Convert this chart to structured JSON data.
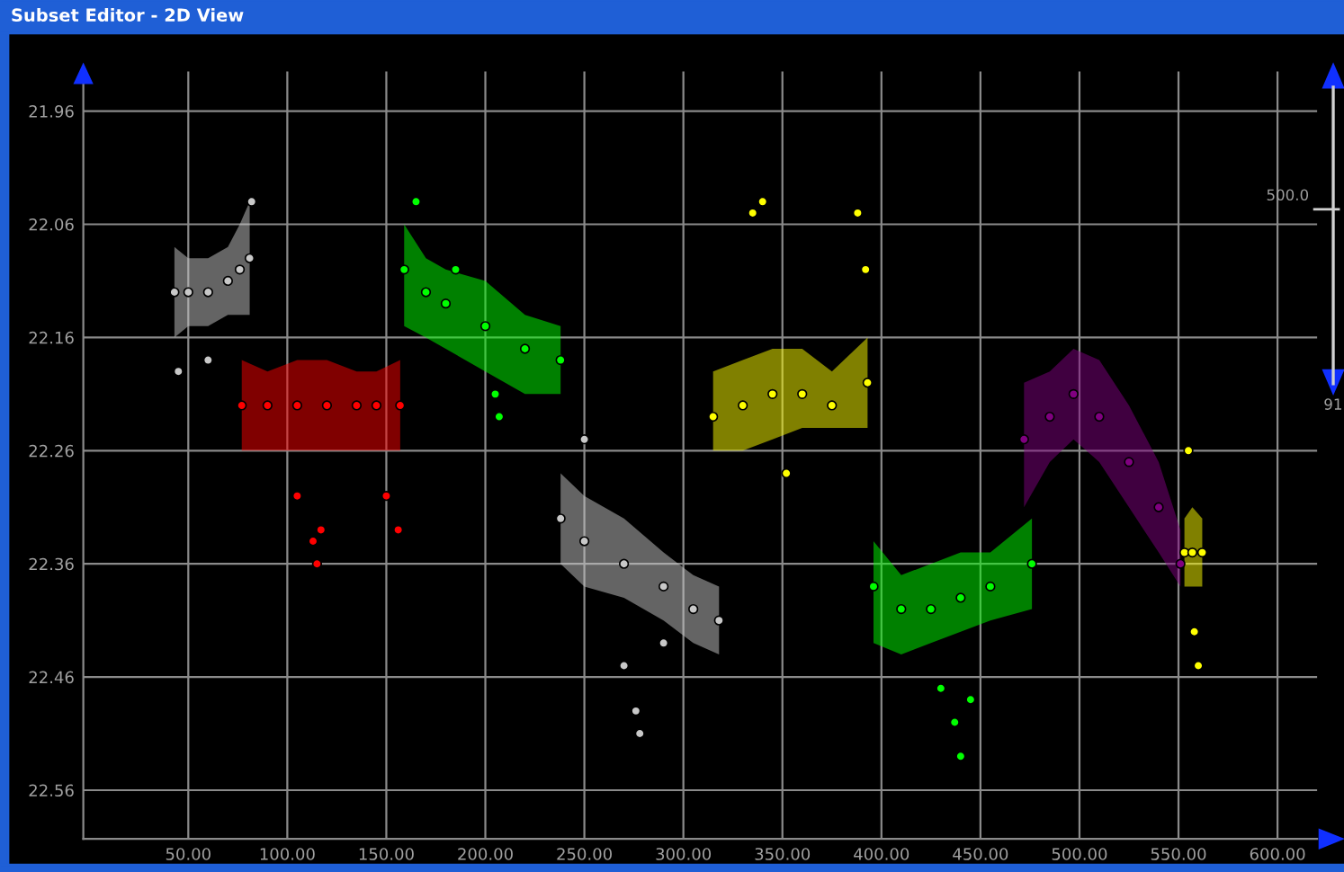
{
  "chart_data": {
    "type": "scatter",
    "title": "Subset Editor - 2D View",
    "annotations": [
      "500.0",
      "91"
    ],
    "marker": "circle",
    "grid": true,
    "xlim": [
      -3,
      620
    ],
    "ylim": [
      22.603,
      21.925
    ],
    "xticks": [
      {
        "value": 50,
        "label": "50.00"
      },
      {
        "value": 100,
        "label": "100.00"
      },
      {
        "value": 150,
        "label": "150.00"
      },
      {
        "value": 200,
        "label": "200.00"
      },
      {
        "value": 250,
        "label": "250.00"
      },
      {
        "value": 300,
        "label": "300.00"
      },
      {
        "value": 350,
        "label": "350.00"
      },
      {
        "value": 400,
        "label": "400.00"
      },
      {
        "value": 450,
        "label": "450.00"
      },
      {
        "value": 500,
        "label": "500.00"
      },
      {
        "value": 550,
        "label": "550.00"
      },
      {
        "value": 600,
        "label": "600.00"
      }
    ],
    "yticks": [
      21.96,
      22.06,
      22.16,
      22.26,
      22.36,
      22.46,
      22.56
    ],
    "series": [
      {
        "color": "#c8c8c8",
        "x": [
          43,
          50,
          60,
          70,
          76,
          81
        ],
        "values": [
          22.12,
          22.12,
          22.12,
          22.11,
          22.1,
          22.09
        ],
        "lower": [
          22.08,
          22.09,
          22.09,
          22.08,
          22.06,
          22.04
        ],
        "upper": [
          22.16,
          22.15,
          22.15,
          22.14,
          22.14,
          22.14
        ]
      },
      {
        "color": "#ff0000",
        "x": [
          77,
          90,
          105,
          120,
          135,
          145,
          157
        ],
        "values": [
          22.22,
          22.22,
          22.22,
          22.22,
          22.22,
          22.22,
          22.22
        ],
        "lower": [
          22.18,
          22.19,
          22.18,
          22.18,
          22.19,
          22.19,
          22.18
        ],
        "upper": [
          22.26,
          22.26,
          22.26,
          22.26,
          22.26,
          22.26,
          22.26
        ]
      },
      {
        "color": "#00ff00",
        "x": [
          159,
          170,
          180,
          200,
          220,
          238
        ],
        "values": [
          22.1,
          22.12,
          22.13,
          22.15,
          22.17,
          22.18
        ],
        "lower": [
          22.06,
          22.09,
          22.1,
          22.11,
          22.14,
          22.15
        ],
        "upper": [
          22.15,
          22.16,
          22.17,
          22.19,
          22.21,
          22.21
        ]
      },
      {
        "color": "#c8c8c8",
        "x": [
          238,
          250,
          270,
          290,
          305,
          318
        ],
        "values": [
          22.32,
          22.34,
          22.36,
          22.38,
          22.4,
          22.41
        ],
        "lower": [
          22.28,
          22.3,
          22.32,
          22.35,
          22.37,
          22.38
        ],
        "upper": [
          22.36,
          22.38,
          22.39,
          22.41,
          22.43,
          22.44
        ]
      },
      {
        "color": "#ffff00",
        "x": [
          315,
          330,
          345,
          360,
          375,
          393
        ],
        "values": [
          22.23,
          22.22,
          22.21,
          22.21,
          22.22,
          22.2
        ],
        "lower": [
          22.19,
          22.18,
          22.17,
          22.17,
          22.19,
          22.16
        ],
        "upper": [
          22.26,
          22.26,
          22.25,
          22.24,
          22.24,
          22.24
        ]
      },
      {
        "color": "#00ff00",
        "x": [
          396,
          410,
          425,
          440,
          455,
          476
        ],
        "values": [
          22.38,
          22.4,
          22.4,
          22.39,
          22.38,
          22.36
        ],
        "lower": [
          22.34,
          22.37,
          22.36,
          22.35,
          22.35,
          22.32
        ],
        "upper": [
          22.43,
          22.44,
          22.43,
          22.42,
          22.41,
          22.4
        ]
      },
      {
        "color": "#800080",
        "x": [
          472,
          485,
          497,
          510,
          525,
          540,
          551
        ],
        "values": [
          22.25,
          22.23,
          22.21,
          22.23,
          22.27,
          22.31,
          22.36
        ],
        "lower": [
          22.2,
          22.19,
          22.17,
          22.18,
          22.22,
          22.27,
          22.33
        ],
        "upper": [
          22.31,
          22.27,
          22.25,
          22.27,
          22.31,
          22.35,
          22.38
        ]
      },
      {
        "color": "#ffff00",
        "x": [
          553,
          557,
          562
        ],
        "values": [
          22.35,
          22.35,
          22.35
        ],
        "lower": [
          22.32,
          22.31,
          22.32
        ],
        "upper": [
          22.38,
          22.38,
          22.38
        ]
      },
      {
        "color": "#c8c8c8",
        "x": [
          45,
          60,
          82,
          250,
          270,
          276,
          278,
          290
        ],
        "values": [
          22.19,
          22.18,
          22.04,
          22.25,
          22.45,
          22.49,
          22.51,
          22.43
        ]
      },
      {
        "color": "#ff0000",
        "x": [
          105,
          113,
          115,
          117,
          150,
          156
        ],
        "values": [
          22.3,
          22.34,
          22.36,
          22.33,
          22.3,
          22.33
        ]
      },
      {
        "color": "#00ff00",
        "x": [
          165,
          185,
          205,
          207,
          430,
          437,
          440,
          445
        ],
        "values": [
          22.04,
          22.1,
          22.21,
          22.23,
          22.47,
          22.5,
          22.53,
          22.48
        ]
      },
      {
        "color": "#ffff00",
        "x": [
          335,
          340,
          388,
          392,
          352,
          555,
          558,
          560
        ],
        "values": [
          22.05,
          22.04,
          22.05,
          22.1,
          22.28,
          22.26,
          22.42,
          22.45
        ]
      }
    ]
  }
}
